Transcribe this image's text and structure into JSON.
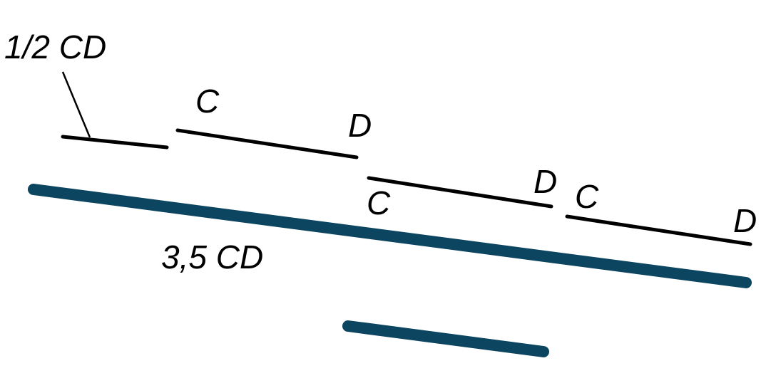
{
  "labels": {
    "half_cd": "1/2 CD",
    "three_five_cd": "3,5 CD",
    "c1": "C",
    "d1": "D",
    "c2": "C",
    "d2": "D",
    "c3": "C",
    "d3": "D"
  },
  "colors": {
    "segment_black": "#000000",
    "segment_blue": "#0c4560",
    "background": "#ffffff"
  }
}
